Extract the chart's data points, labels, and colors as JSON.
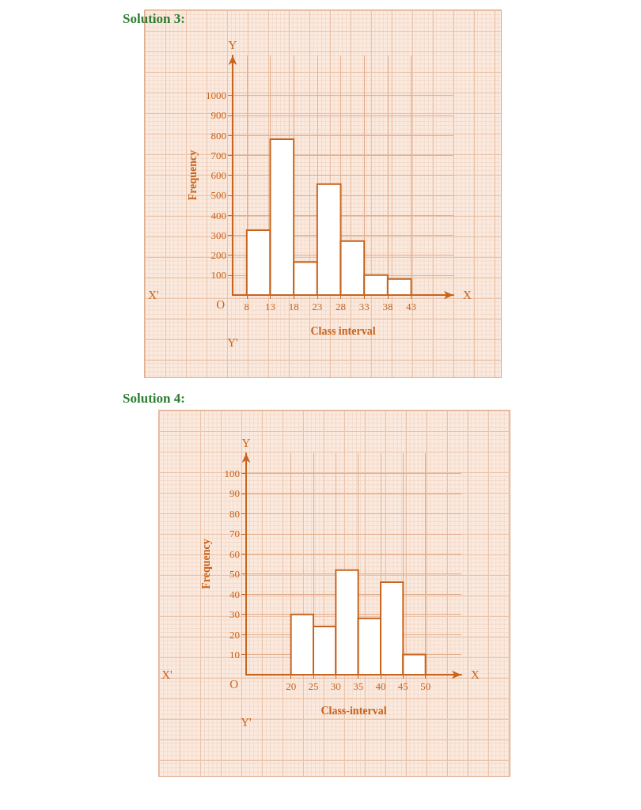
{
  "chart_data": [
    {
      "type": "histogram",
      "title": "Solution 3:",
      "xlabel": "Class interval",
      "ylabel": "Frequency",
      "bins": [
        8,
        13,
        18,
        23,
        28,
        33,
        38,
        43
      ],
      "values": [
        325,
        780,
        165,
        555,
        270,
        100,
        80
      ],
      "color": "#ffffff",
      "xlim": [
        5,
        52
      ],
      "ylim": [
        0,
        1200
      ],
      "xticks": [
        8,
        13,
        18,
        23,
        28,
        33,
        38,
        43
      ],
      "yticks": [
        100,
        200,
        300,
        400,
        500,
        600,
        700,
        800,
        900,
        1000
      ],
      "grid": true,
      "annotations": [
        "X'",
        "X",
        "Y",
        "Y'",
        "O"
      ]
    },
    {
      "type": "histogram",
      "title": "Solution 4:",
      "xlabel": "Class-interval",
      "ylabel": "Frequency",
      "bins": [
        20,
        25,
        30,
        35,
        40,
        45,
        50
      ],
      "values": [
        30,
        24,
        52,
        28,
        46,
        10
      ],
      "color": "#ffffff",
      "xlim": [
        10,
        58
      ],
      "ylim": [
        0,
        110
      ],
      "xticks": [
        20,
        25,
        30,
        35,
        40,
        45,
        50
      ],
      "yticks": [
        10,
        20,
        30,
        40,
        50,
        60,
        70,
        80,
        90,
        100
      ],
      "grid": true,
      "annotations": [
        "X'",
        "X",
        "Y",
        "Y'",
        "O"
      ]
    }
  ]
}
